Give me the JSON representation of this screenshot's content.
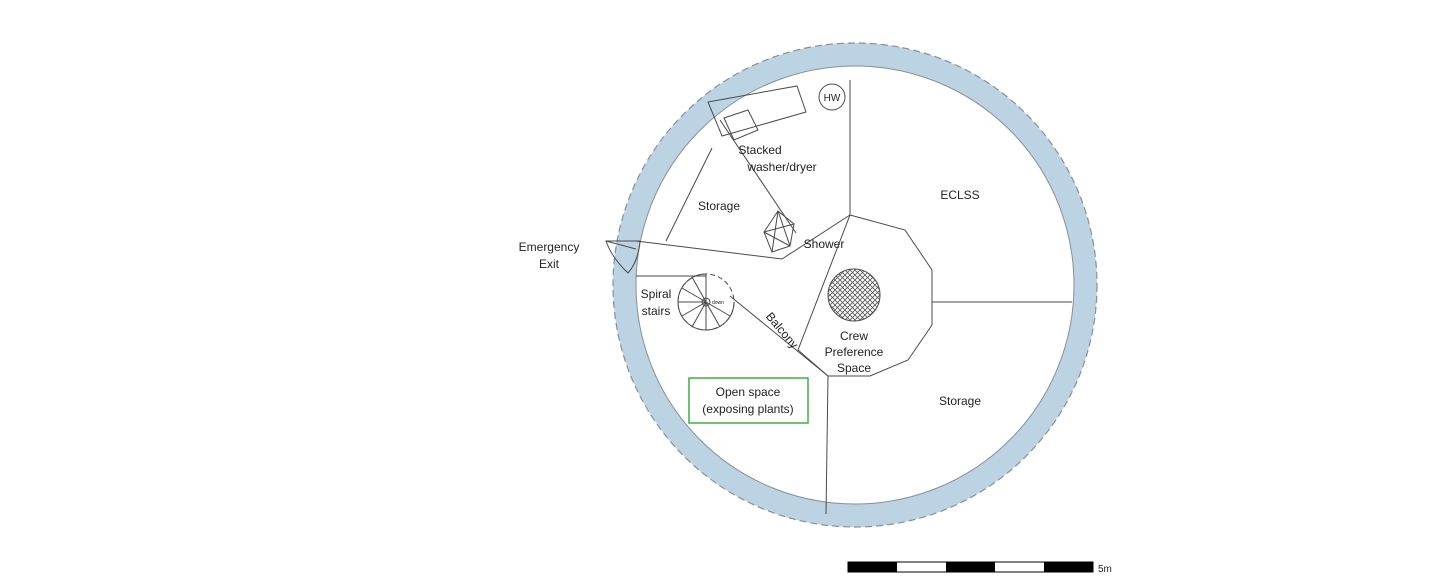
{
  "labels": {
    "hw": "HW",
    "washer_line1": "Stacked",
    "washer_line2": "washer/dryer",
    "storage_top": "Storage",
    "eclss": "ECLSS",
    "shower": "Shower",
    "emergency_line1": "Emergency",
    "emergency_line2": "Exit",
    "spiral_line1": "Spiral",
    "spiral_line2": "stairs",
    "down": "down",
    "balcony": "Balcony",
    "crew_line1": "Crew",
    "crew_line2": "Preference",
    "crew_line3": "Space",
    "open_line1": "Open space",
    "open_line2": "(exposing plants)",
    "storage_bottom": "Storage",
    "scale": "5m"
  },
  "colors": {
    "outer_wall": "#bcd3e3",
    "wall_dash": "#8a8f96",
    "lines": "#4a4a4a",
    "open_space_border": "#3cb043",
    "hatch": "#555555"
  }
}
